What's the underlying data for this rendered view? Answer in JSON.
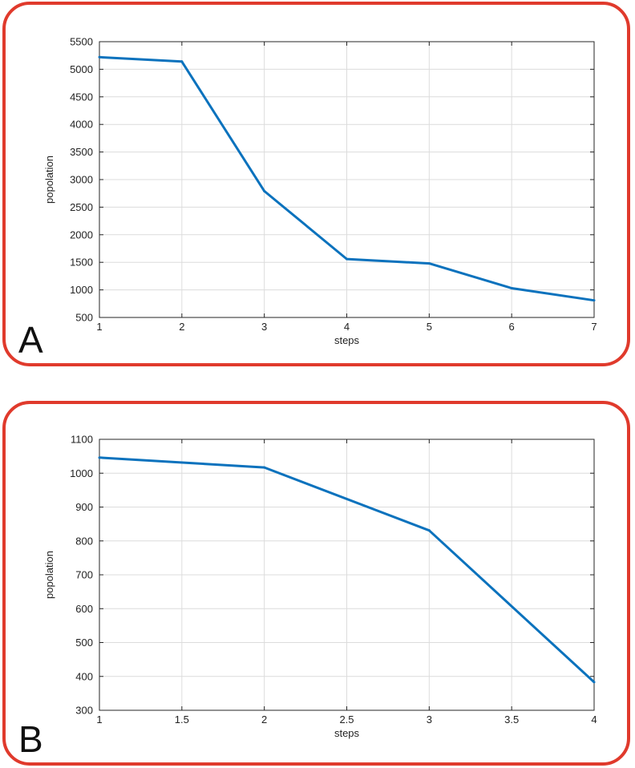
{
  "chart_data": [
    {
      "type": "line",
      "panel_label": "A",
      "xlabel": "steps",
      "ylabel": "popolation",
      "xlim": [
        1,
        7
      ],
      "ylim": [
        500,
        5500
      ],
      "xticks": [
        1,
        2,
        3,
        4,
        5,
        6,
        7
      ],
      "yticks": [
        500,
        1000,
        1500,
        2000,
        2500,
        3000,
        3500,
        4000,
        4500,
        5000,
        5500
      ],
      "grid": true,
      "line_color": "#0b72bd",
      "series": [
        {
          "x": [
            1,
            2,
            3,
            4,
            5,
            6,
            7
          ],
          "y": [
            5220,
            5140,
            2790,
            1560,
            1480,
            1030,
            810
          ]
        }
      ]
    },
    {
      "type": "line",
      "panel_label": "B",
      "xlabel": "steps",
      "ylabel": "popolation",
      "xlim": [
        1,
        4
      ],
      "ylim": [
        300,
        1100
      ],
      "xticks": [
        1,
        1.5,
        2,
        2.5,
        3,
        3.5,
        4
      ],
      "yticks": [
        300,
        400,
        500,
        600,
        700,
        800,
        900,
        1000,
        1100
      ],
      "grid": true,
      "line_color": "#0b72bd",
      "series": [
        {
          "x": [
            1,
            2,
            3,
            4
          ],
          "y": [
            1046,
            1017,
            831,
            383
          ]
        }
      ]
    }
  ]
}
